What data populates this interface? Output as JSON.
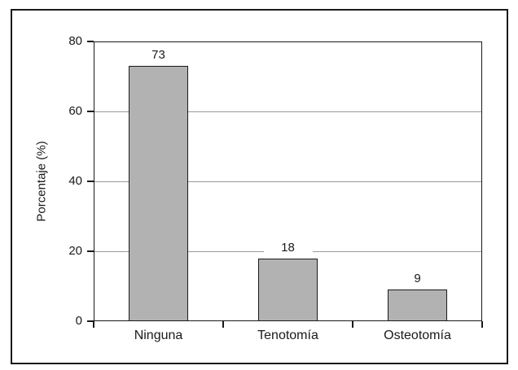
{
  "chart_data": {
    "type": "bar",
    "categories": [
      "Ninguna",
      "Tenotomía",
      "Osteotomía"
    ],
    "values": [
      73,
      18,
      9
    ],
    "value_labels": [
      "73",
      "18",
      "9"
    ],
    "title": "",
    "xlabel": "",
    "ylabel": "Porcentaje (%)",
    "ylim": [
      0,
      80
    ],
    "yticks": [
      0,
      20,
      40,
      60,
      80
    ],
    "grid": true,
    "legend": "none",
    "colors": {
      "bar_fill": "#b2b2b2",
      "bar_border": "#1a1a1a",
      "gridline": "#999999",
      "axis": "#1a1a1a",
      "text": "#1a1a1a",
      "background": "#ffffff"
    }
  }
}
